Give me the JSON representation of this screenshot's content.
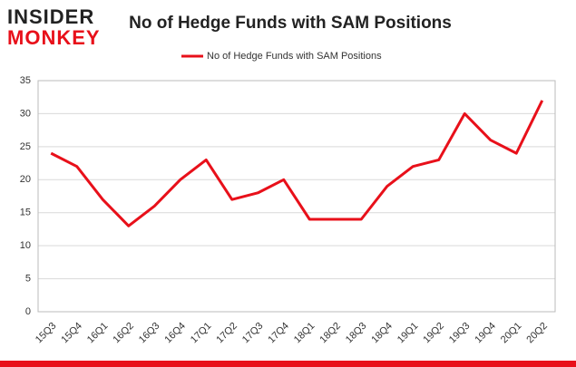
{
  "brand": {
    "line1": "INSIDER",
    "line2": "MONKEY"
  },
  "chart_data": {
    "type": "line",
    "title": "No of Hedge Funds with SAM Positions",
    "categories": [
      "15Q3",
      "15Q4",
      "16Q1",
      "16Q2",
      "16Q3",
      "16Q4",
      "17Q1",
      "17Q2",
      "17Q3",
      "17Q4",
      "18Q1",
      "18Q2",
      "18Q3",
      "18Q4",
      "19Q1",
      "19Q2",
      "19Q3",
      "19Q4",
      "20Q1",
      "20Q2"
    ],
    "series": [
      {
        "name": "No of Hedge Funds with SAM Positions",
        "color": "#e8101a",
        "values": [
          24,
          22,
          17,
          13,
          16,
          20,
          23,
          17,
          18,
          20,
          14,
          14,
          14,
          19,
          22,
          23,
          30,
          26,
          24,
          32
        ]
      }
    ],
    "ylim": [
      0,
      35
    ],
    "yticks": [
      0,
      5,
      10,
      15,
      20,
      25,
      30,
      35
    ],
    "grid": true,
    "legend": "top"
  }
}
